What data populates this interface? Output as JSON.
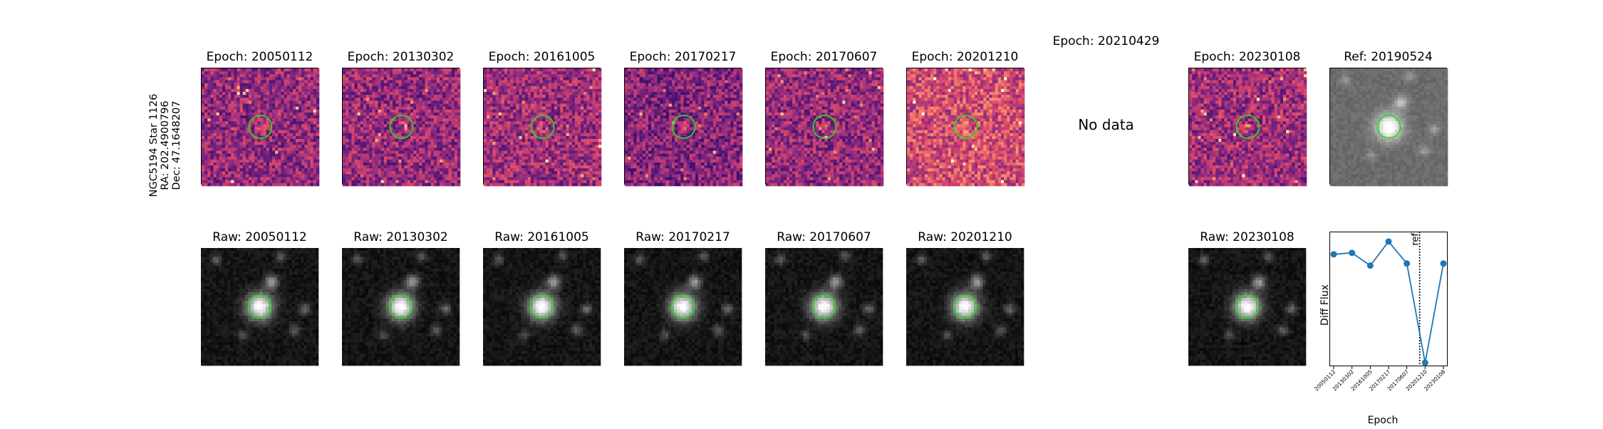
{
  "star_info": {
    "name": "NGC5194 Star 1126",
    "ra": "RA: 202.4900796",
    "dec": "Dec: 47.1648207"
  },
  "top_row": [
    {
      "title": "Epoch: 20050112",
      "kind": "diff"
    },
    {
      "title": "Epoch: 20130302",
      "kind": "diff"
    },
    {
      "title": "Epoch: 20161005",
      "kind": "diff"
    },
    {
      "title": "Epoch: 20170217",
      "kind": "diff"
    },
    {
      "title": "Epoch: 20170607",
      "kind": "diff"
    },
    {
      "title": "Epoch: 20201210",
      "kind": "diff"
    },
    {
      "title": "Epoch: 20210429",
      "kind": "nodata",
      "message": "No data"
    },
    {
      "title": "Epoch: 20230108",
      "kind": "diff"
    },
    {
      "title": "Ref: 20190524",
      "kind": "ref"
    }
  ],
  "bottom_row": [
    {
      "title": "Raw: 20050112"
    },
    {
      "title": "Raw: 20130302"
    },
    {
      "title": "Raw: 20161005"
    },
    {
      "title": "Raw: 20170217"
    },
    {
      "title": "Raw: 20170607"
    },
    {
      "title": "Raw: 20201210"
    },
    {
      "title": ""
    },
    {
      "title": "Raw: 20230108"
    }
  ],
  "colors": {
    "marker_circle": "#22dd22",
    "series_line": "#1f77b4",
    "magma_low": "#3b0f70",
    "magma_high": "#fcfdbf"
  },
  "chart_data": {
    "type": "line",
    "xlabel": "Epoch",
    "ylabel": "Diff Flux",
    "categories": [
      "20050112",
      "20130302",
      "20161005",
      "20170217",
      "20170607",
      "20201210",
      "20230108"
    ],
    "values": [
      0.78,
      0.8,
      0.62,
      0.96,
      0.65,
      -0.75,
      0.65
    ],
    "ylim": [
      -0.8,
      1.1
    ],
    "ref_line": {
      "label": "ref",
      "position_after_index": 4.7
    },
    "grid": false
  }
}
